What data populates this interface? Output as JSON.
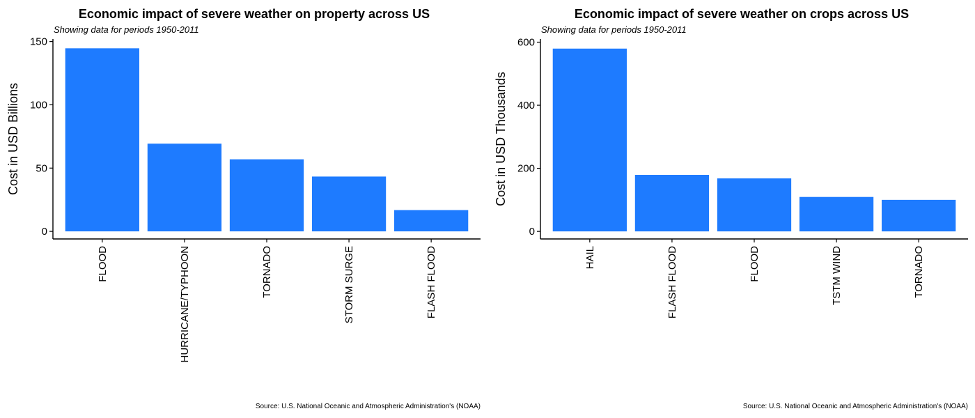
{
  "chart_data": [
    {
      "type": "bar",
      "title": "Economic impact of severe weather on property across US",
      "subtitle": "Showing data for periods 1950-2011",
      "xlabel": "",
      "ylabel": "Cost in USD Billions",
      "categories": [
        "FLOOD",
        "HURRICANE/TYPHOON",
        "TORNADO",
        "STORM SURGE",
        "FLASH FLOOD"
      ],
      "values": [
        144.66,
        69.31,
        56.94,
        43.32,
        16.82
      ],
      "ylim": [
        -6,
        152
      ],
      "yticks": [
        0,
        50,
        100,
        150
      ],
      "bar_color": "#1E7BFF",
      "caption": "Source: U.S. National Oceanic and Atmospheric Administration's (NOAA)",
      "grid": false,
      "legend": "none"
    },
    {
      "type": "bar",
      "title": "Economic impact of severe weather on crops across US",
      "subtitle": "Showing data for periods 1950-2011",
      "xlabel": "",
      "ylabel": "Cost in USD Thousands",
      "categories": [
        "HAIL",
        "FLASH FLOOD",
        "FLOOD",
        "TSTM WIND",
        "TORNADO"
      ],
      "values": [
        579.6,
        179.2,
        168.0,
        109.2,
        100.0
      ],
      "ylim": [
        -24,
        610
      ],
      "yticks": [
        0,
        200,
        400,
        600
      ],
      "bar_color": "#1E7BFF",
      "caption": "Source: U.S. National Oceanic and Atmospheric Administration's (NOAA)",
      "grid": false,
      "legend": "none"
    }
  ]
}
